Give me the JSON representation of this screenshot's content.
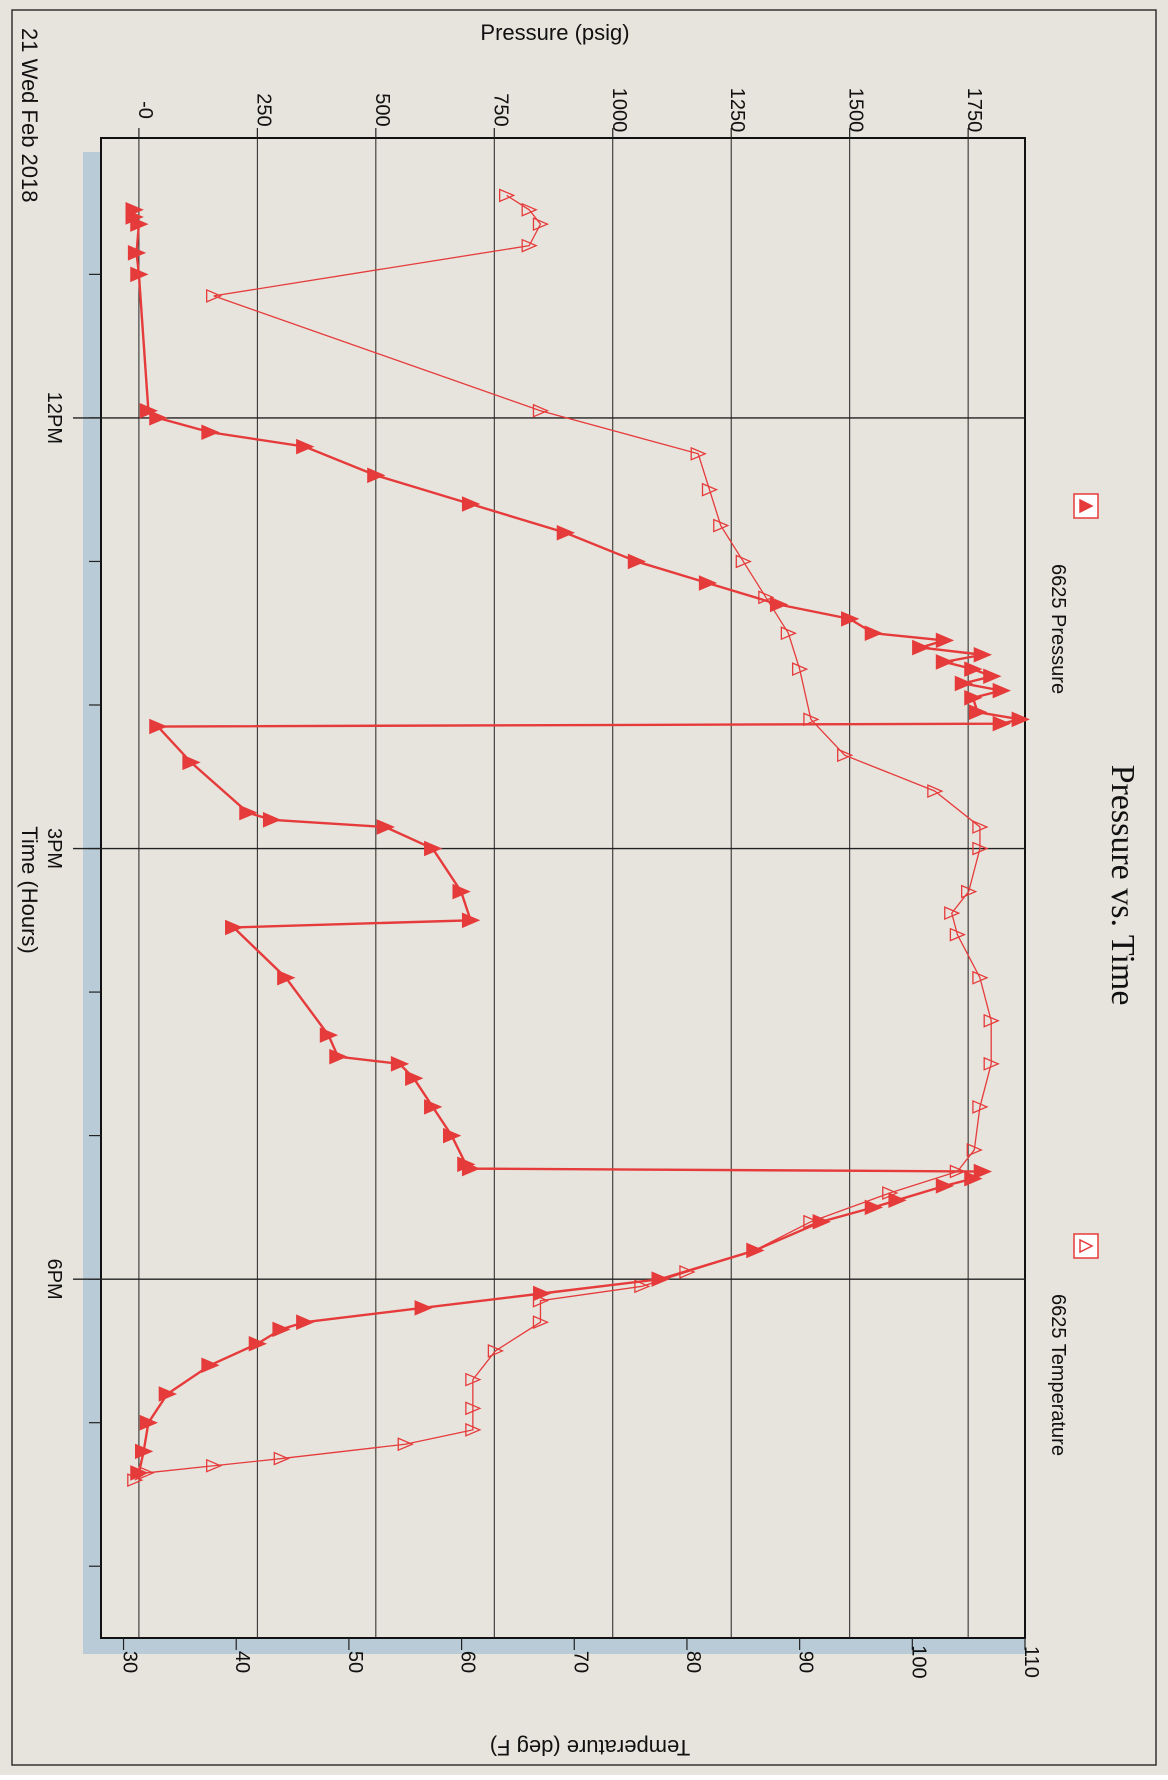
{
  "chart_data": {
    "type": "line",
    "title": "Pressure vs. Time",
    "xlabel": "Time (Hours)",
    "date_label": "21 Wed Feb 2018",
    "ylabel_left": "Pressure (psig)",
    "ylabel_right": "Temperature (deg F)",
    "x_ticks": [
      "12PM",
      "3PM",
      "6PM"
    ],
    "pressure_ticks": [
      "-0",
      "250",
      "500",
      "750",
      "1000",
      "1250",
      "1500",
      "1750"
    ],
    "temperature_ticks": [
      "30",
      "40",
      "50",
      "60",
      "70",
      "80",
      "90",
      "100",
      "110"
    ],
    "x_unit": "hours after 12PM",
    "xlim": [
      -1.95,
      8.5
    ],
    "ylim_pressure": [
      -80,
      1870
    ],
    "ylim_temperature": [
      28,
      110
    ],
    "grid": true,
    "legend_placement": "top-right",
    "colors": {
      "series": "#e63b3b",
      "grid": "#222222",
      "band": "#b9cbd6"
    },
    "series": [
      {
        "name": "6625 Pressure",
        "axis": "left",
        "marker": "filled-triangle",
        "points": [
          [
            -1.45,
            -10
          ],
          [
            -1.4,
            -10
          ],
          [
            -1.35,
            0
          ],
          [
            -1.15,
            -5
          ],
          [
            -1.0,
            0
          ],
          [
            -0.05,
            20
          ],
          [
            0.0,
            40
          ],
          [
            0.1,
            150
          ],
          [
            0.2,
            350
          ],
          [
            0.4,
            500
          ],
          [
            0.6,
            700
          ],
          [
            0.8,
            900
          ],
          [
            1.0,
            1050
          ],
          [
            1.15,
            1200
          ],
          [
            1.3,
            1350
          ],
          [
            1.4,
            1500
          ],
          [
            1.5,
            1550
          ],
          [
            1.55,
            1700
          ],
          [
            1.6,
            1650
          ],
          [
            1.65,
            1780
          ],
          [
            1.7,
            1700
          ],
          [
            1.75,
            1760
          ],
          [
            1.8,
            1800
          ],
          [
            1.85,
            1740
          ],
          [
            1.9,
            1820
          ],
          [
            1.95,
            1760
          ],
          [
            2.05,
            1770
          ],
          [
            2.1,
            1860
          ],
          [
            2.13,
            1820
          ],
          [
            2.15,
            40
          ],
          [
            2.4,
            110
          ],
          [
            2.75,
            230
          ],
          [
            2.8,
            280
          ],
          [
            2.85,
            520
          ],
          [
            3.0,
            620
          ],
          [
            3.3,
            680
          ],
          [
            3.5,
            700
          ],
          [
            3.55,
            200
          ],
          [
            3.9,
            310
          ],
          [
            4.3,
            400
          ],
          [
            4.45,
            420
          ],
          [
            4.5,
            550
          ],
          [
            4.6,
            580
          ],
          [
            4.8,
            620
          ],
          [
            5.0,
            660
          ],
          [
            5.2,
            690
          ],
          [
            5.23,
            700
          ],
          [
            5.25,
            1780
          ],
          [
            5.3,
            1760
          ],
          [
            5.35,
            1700
          ],
          [
            5.45,
            1600
          ],
          [
            5.5,
            1550
          ],
          [
            5.6,
            1440
          ],
          [
            5.8,
            1300
          ],
          [
            6.0,
            1100
          ],
          [
            6.1,
            850
          ],
          [
            6.2,
            600
          ],
          [
            6.3,
            350
          ],
          [
            6.35,
            300
          ],
          [
            6.45,
            250
          ],
          [
            6.6,
            150
          ],
          [
            6.8,
            60
          ],
          [
            7.0,
            20
          ],
          [
            7.2,
            10
          ],
          [
            7.35,
            0
          ]
        ]
      },
      {
        "name": "6625 Temperature",
        "axis": "right",
        "marker": "open-triangle",
        "points": [
          [
            -1.55,
            64
          ],
          [
            -1.45,
            66
          ],
          [
            -1.35,
            67
          ],
          [
            -1.2,
            66
          ],
          [
            -0.85,
            38
          ],
          [
            -0.05,
            67
          ],
          [
            0.25,
            81
          ],
          [
            0.5,
            82
          ],
          [
            0.75,
            83
          ],
          [
            1.0,
            85
          ],
          [
            1.25,
            87
          ],
          [
            1.5,
            89
          ],
          [
            1.75,
            90
          ],
          [
            2.1,
            91
          ],
          [
            2.35,
            94
          ],
          [
            2.6,
            102
          ],
          [
            2.85,
            106
          ],
          [
            3.0,
            106
          ],
          [
            3.3,
            105
          ],
          [
            3.45,
            103.5
          ],
          [
            3.6,
            104
          ],
          [
            3.9,
            106
          ],
          [
            4.2,
            107
          ],
          [
            4.5,
            107
          ],
          [
            4.8,
            106
          ],
          [
            5.1,
            105.5
          ],
          [
            5.25,
            104
          ],
          [
            5.4,
            98
          ],
          [
            5.6,
            91
          ],
          [
            5.8,
            86
          ],
          [
            5.95,
            80
          ],
          [
            6.05,
            76
          ],
          [
            6.15,
            67
          ],
          [
            6.3,
            67
          ],
          [
            6.5,
            63
          ],
          [
            6.7,
            61
          ],
          [
            6.9,
            61
          ],
          [
            7.05,
            61
          ],
          [
            7.15,
            55
          ],
          [
            7.25,
            44
          ],
          [
            7.3,
            38
          ],
          [
            7.35,
            32
          ],
          [
            7.4,
            31
          ]
        ]
      }
    ]
  }
}
